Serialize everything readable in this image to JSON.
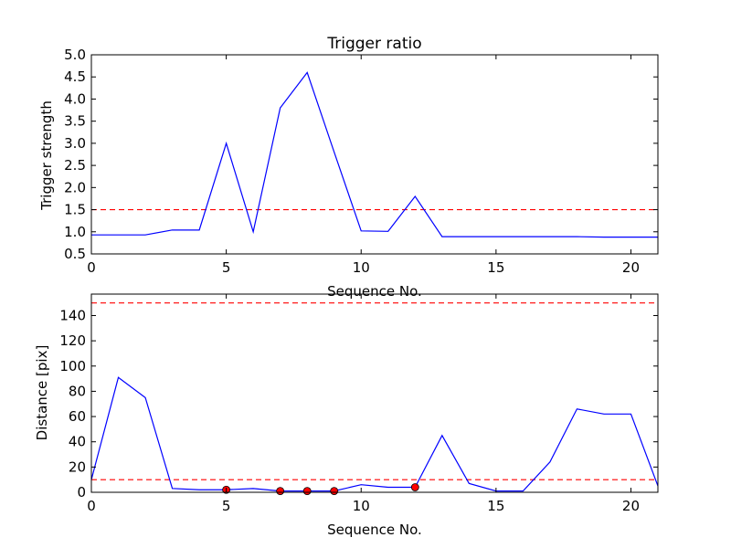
{
  "chart_data": [
    {
      "type": "line",
      "title": "Trigger ratio",
      "xlabel": "Sequence No.",
      "ylabel": "Trigger strength",
      "xlim": [
        0,
        21
      ],
      "ylim": [
        0.5,
        5.0
      ],
      "xticks": [
        "0",
        "5",
        "10",
        "15",
        "20"
      ],
      "yticks": [
        "0.5",
        "1.0",
        "1.5",
        "2.0",
        "2.5",
        "3.0",
        "3.5",
        "4.0",
        "4.5",
        "5.0"
      ],
      "grid": false,
      "series": [
        {
          "color": "#0000ff",
          "style": "solid",
          "x": [
            0,
            1,
            2,
            3,
            4,
            5,
            6,
            7,
            8,
            9,
            10,
            11,
            12,
            13,
            14,
            15,
            16,
            17,
            18,
            19,
            20,
            21
          ],
          "y": [
            0.93,
            0.93,
            0.93,
            1.04,
            1.04,
            3.0,
            1.0,
            3.8,
            4.6,
            2.8,
            1.02,
            1.01,
            1.8,
            0.89,
            0.89,
            0.89,
            0.89,
            0.89,
            0.89,
            0.88,
            0.88,
            0.88
          ]
        }
      ],
      "thresholds": [
        {
          "y": 1.5,
          "color": "#ff0000",
          "style": "dashed"
        }
      ],
      "markers": []
    },
    {
      "type": "line",
      "title": "",
      "xlabel": "Sequence No.",
      "ylabel": "Distance [pix]",
      "xlim": [
        0,
        21
      ],
      "ylim": [
        0,
        157
      ],
      "xticks": [
        "0",
        "5",
        "10",
        "15",
        "20"
      ],
      "yticks": [
        "0",
        "20",
        "40",
        "60",
        "80",
        "100",
        "120",
        "140"
      ],
      "grid": false,
      "series": [
        {
          "color": "#0000ff",
          "style": "solid",
          "x": [
            0,
            1,
            2,
            3,
            4,
            5,
            6,
            7,
            8,
            9,
            10,
            11,
            12,
            13,
            14,
            15,
            16,
            17,
            18,
            19,
            20,
            21
          ],
          "y": [
            10,
            91,
            75,
            3,
            2,
            2,
            3,
            1,
            1,
            1,
            6,
            4,
            4,
            45,
            7,
            1,
            1,
            24,
            66,
            62,
            62,
            5
          ]
        }
      ],
      "thresholds": [
        {
          "y": 150,
          "color": "#ff0000",
          "style": "dashed"
        },
        {
          "y": 10,
          "color": "#ff0000",
          "style": "dashed"
        }
      ],
      "markers": [
        {
          "x": 5,
          "y": 2,
          "color": "#ff0000"
        },
        {
          "x": 7,
          "y": 1,
          "color": "#ff0000"
        },
        {
          "x": 8,
          "y": 1,
          "color": "#ff0000"
        },
        {
          "x": 9,
          "y": 1,
          "color": "#ff0000"
        },
        {
          "x": 12,
          "y": 4,
          "color": "#ff0000"
        }
      ]
    }
  ]
}
